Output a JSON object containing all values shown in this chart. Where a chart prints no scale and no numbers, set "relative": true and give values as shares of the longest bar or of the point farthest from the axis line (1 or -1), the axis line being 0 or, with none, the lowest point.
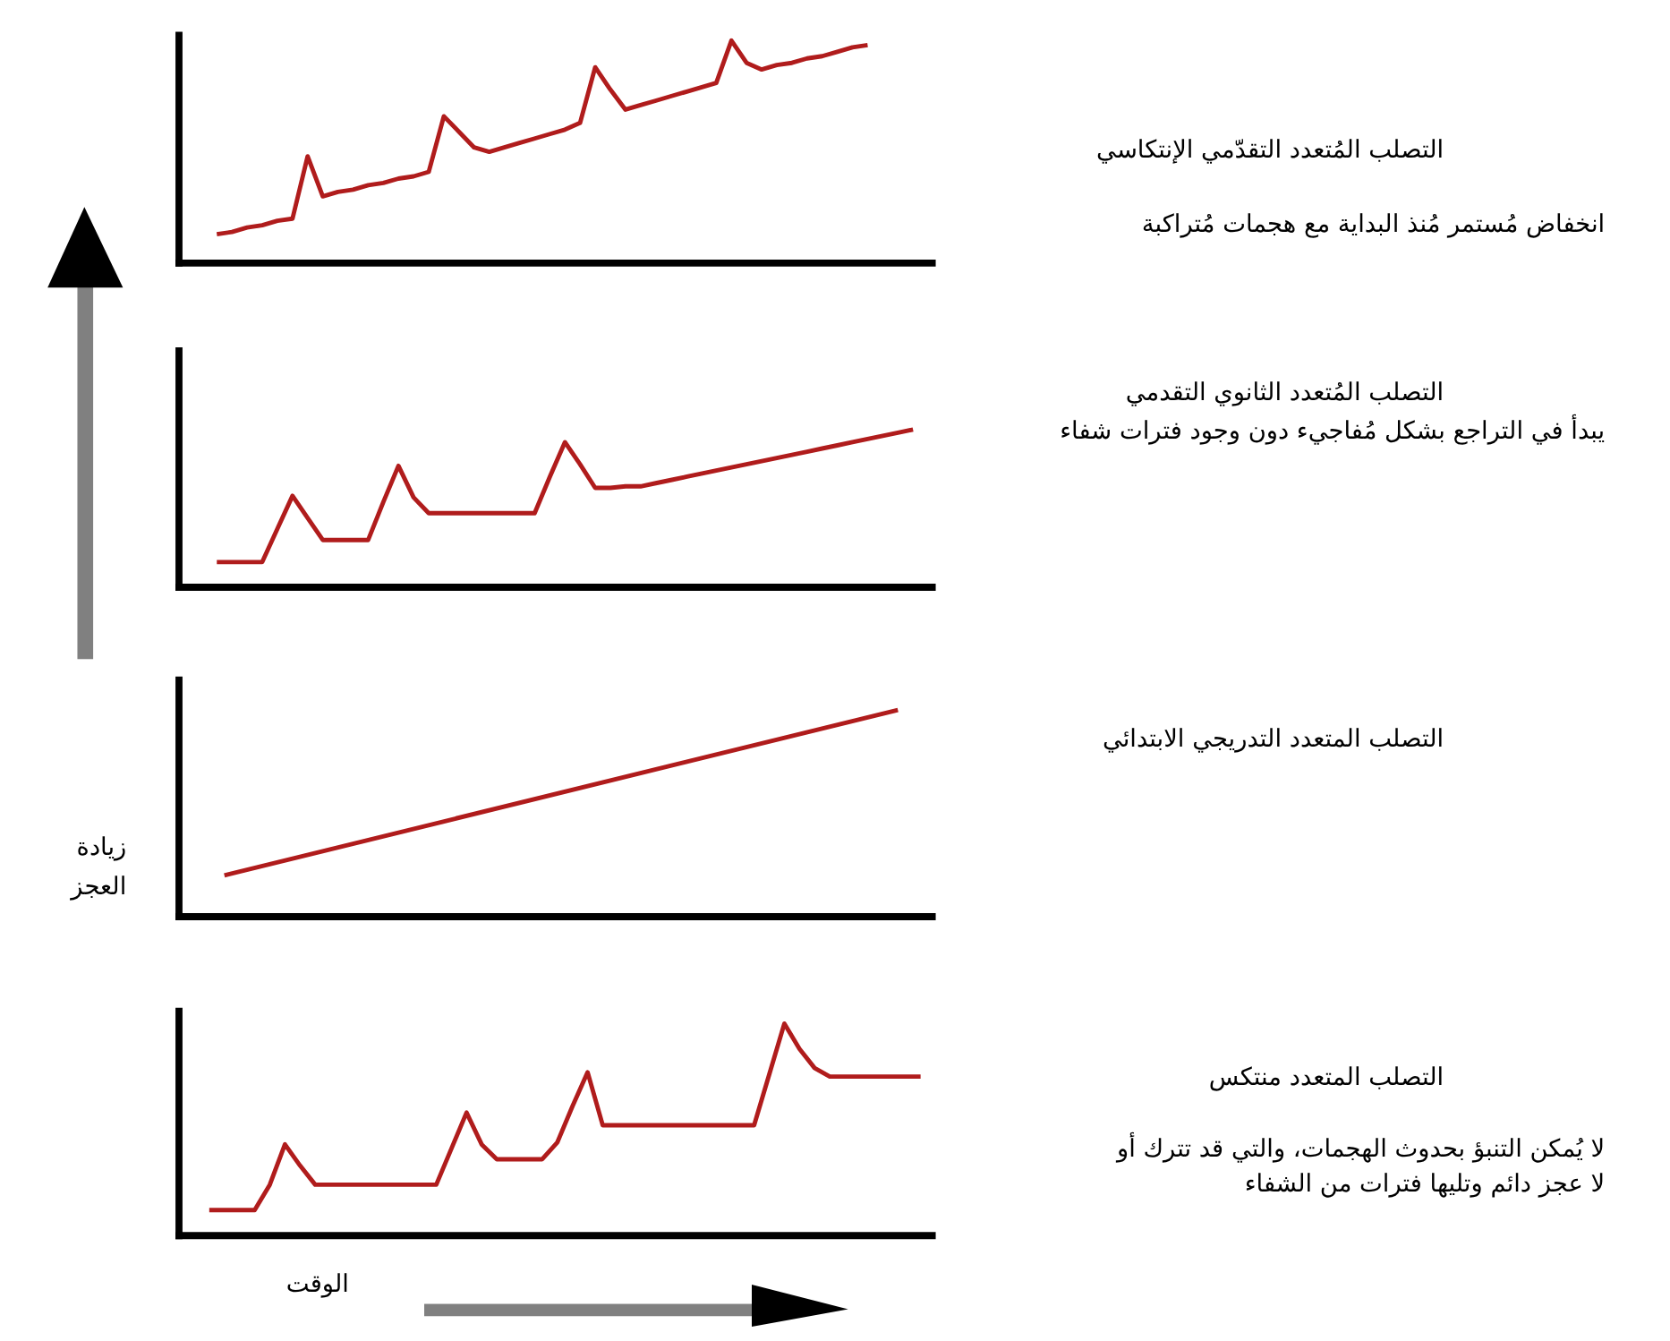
{
  "chart_data": [
    {
      "type": "line",
      "relative": true,
      "annotations": [
        "التصلب المُتعدد التقدّمي الإنتكاسي",
        "انخفاض مُستمر مُنذ البداية مع هجمات مُتراكبة"
      ],
      "categories": [
        null,
        null,
        null,
        null,
        null,
        null,
        null,
        null,
        null,
        null,
        null,
        null,
        null,
        null,
        null,
        null,
        null,
        null,
        null,
        null,
        null,
        null,
        null,
        null,
        null,
        null,
        null,
        null,
        null,
        null,
        null,
        null,
        null,
        null,
        null,
        null,
        null,
        null,
        null,
        null,
        null,
        null,
        null,
        null
      ],
      "series": [
        {
          "color": "#b01c1c",
          "values": [
            0.13,
            0.14,
            0.16,
            0.17,
            0.19,
            0.2,
            0.48,
            0.3,
            0.32,
            0.33,
            0.35,
            0.36,
            0.38,
            0.39,
            0.41,
            0.66,
            0.59,
            0.52,
            0.5,
            0.52,
            0.54,
            0.56,
            0.58,
            0.6,
            0.63,
            0.88,
            0.78,
            0.69,
            0.71,
            0.73,
            0.75,
            0.77,
            0.79,
            0.81,
            1,
            0.9,
            0.87,
            0.89,
            0.9,
            0.92,
            0.93,
            0.95,
            0.97,
            0.98
          ]
        }
      ]
    },
    {
      "type": "line",
      "relative": true,
      "annotations": [
        "التصلب المُتعدد الثانوي التقدمي",
        "يبدأ في التراجع بشكل مُفاجيء دون وجود فترات شفاء"
      ],
      "categories": [
        null,
        null,
        null,
        null,
        null,
        null,
        null,
        null,
        null,
        null,
        null,
        null,
        null,
        null,
        null,
        null,
        null,
        null,
        null,
        null,
        null,
        null,
        null,
        null,
        null,
        null,
        null,
        null,
        null,
        null,
        null,
        null,
        null,
        null,
        null,
        null,
        null,
        null,
        null,
        null,
        null,
        null,
        null,
        null,
        null,
        null,
        null
      ],
      "series": [
        {
          "color": "#b01c1c",
          "values": [
            0.16,
            0.16,
            0.16,
            0.16,
            0.37,
            0.58,
            0.44,
            0.3,
            0.3,
            0.3,
            0.3,
            0.54,
            0.77,
            0.57,
            0.47,
            0.47,
            0.47,
            0.47,
            0.47,
            0.47,
            0.47,
            0.47,
            0.7,
            0.92,
            0.78,
            0.63,
            0.63,
            0.64,
            0.64,
            0.66,
            0.68,
            0.7,
            0.72,
            0.74,
            0.76,
            0.78,
            0.8,
            0.82,
            0.84,
            0.86,
            0.88,
            0.9,
            0.92,
            0.94,
            0.96,
            0.98,
            1
          ]
        }
      ]
    },
    {
      "type": "line",
      "relative": true,
      "annotations": [
        "التصلب المتعدد التدريجي الابتدائي"
      ],
      "ylabel": "زيادة العجز",
      "categories": [
        null,
        null
      ],
      "ref_lines": [
        {
          "axis": "y",
          "value": 0,
          "color": "#000000"
        }
      ],
      "series": [
        {
          "color": "#b01c1c",
          "values": [
            0.2,
            1
          ]
        }
      ]
    },
    {
      "type": "line",
      "relative": true,
      "annotations": [
        "التصلب المتعدد منتكس",
        "لا يُمكن التنبؤ بحدوث الهجمات، والتي قد تترك أو لا عجز دائم وتليها فترات من الشفاء"
      ],
      "xlabel": "الوقت",
      "categories": [
        null,
        null,
        null,
        null,
        null,
        null,
        null,
        null,
        null,
        null,
        null,
        null,
        null,
        null,
        null,
        null,
        null,
        null,
        null,
        null,
        null,
        null,
        null,
        null,
        null,
        null,
        null,
        null,
        null,
        null,
        null,
        null,
        null,
        null,
        null,
        null,
        null,
        null,
        null,
        null,
        null,
        null,
        null,
        null,
        null,
        null,
        null,
        null
      ],
      "series": [
        {
          "color": "#b01c1c",
          "values": [
            0.12,
            0.12,
            0.12,
            0.12,
            0.24,
            0.43,
            0.33,
            0.24,
            0.24,
            0.24,
            0.24,
            0.24,
            0.24,
            0.24,
            0.24,
            0.24,
            0.41,
            0.58,
            0.43,
            0.36,
            0.36,
            0.36,
            0.36,
            0.44,
            0.61,
            0.77,
            0.52,
            0.52,
            0.52,
            0.52,
            0.52,
            0.52,
            0.52,
            0.52,
            0.52,
            0.52,
            0.52,
            0.76,
            1,
            0.88,
            0.79,
            0.75,
            0.75,
            0.75,
            0.75,
            0.75,
            0.75,
            0.75
          ]
        }
      ]
    }
  ]
}
